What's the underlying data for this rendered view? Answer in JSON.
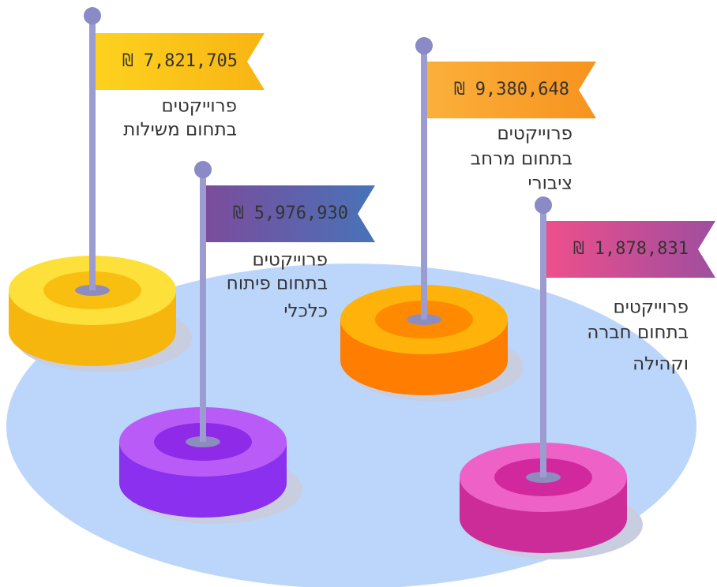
{
  "items": [
    {
      "amount": "₪ 7,821,705",
      "label": [
        "פרוייקטים",
        "בתחום משילות"
      ]
    },
    {
      "amount": "₪ 5,976,930",
      "label": [
        "פרוייקטים",
        "בתחום פיתוח",
        "כלכלי"
      ]
    },
    {
      "amount": "₪ 9,380,648",
      "label": [
        "פרוייקטים",
        "בתחום מרחב",
        "ציבורי"
      ]
    },
    {
      "amount": "₪ 1,878,831",
      "label": [
        "פרוייקטים",
        "בתחום חברה",
        "וקהילה"
      ]
    }
  ]
}
